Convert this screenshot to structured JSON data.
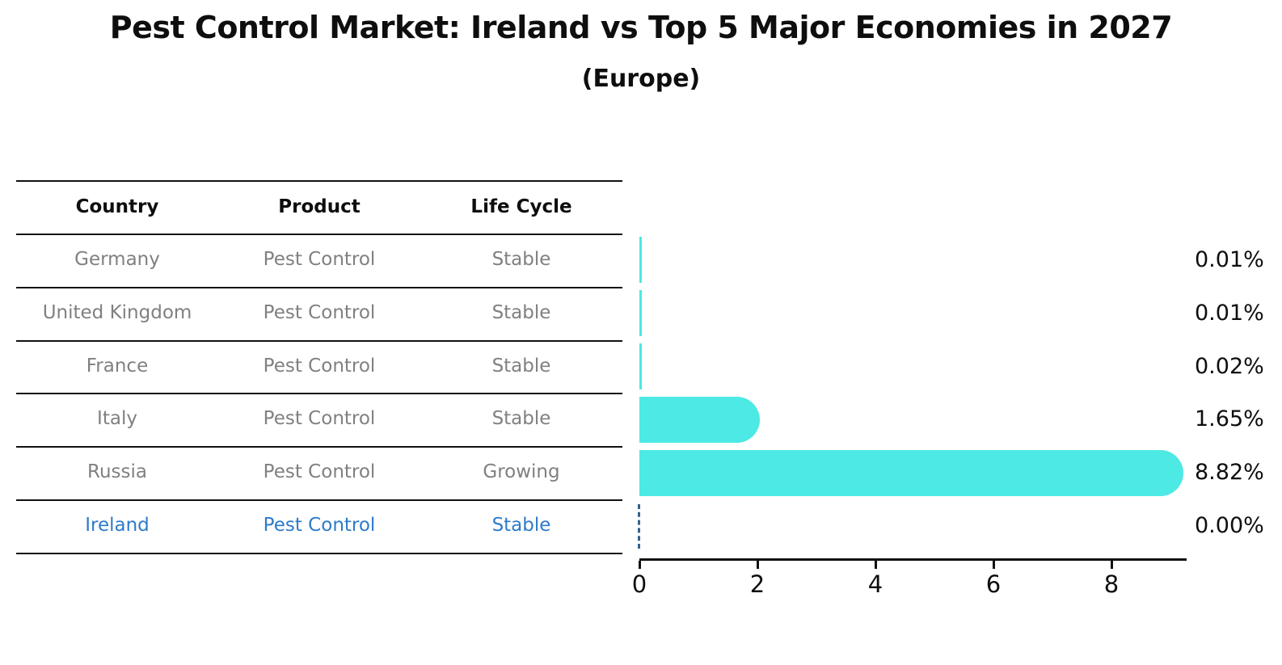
{
  "title": "Pest Control Market: Ireland vs Top 5 Major Economies in 2027",
  "subtitle": "(Europe)",
  "table": {
    "columns": [
      "Country",
      "Product",
      "Life Cycle"
    ],
    "rows": [
      {
        "country": "Germany",
        "product": "Pest Control",
        "life_cycle": "Stable",
        "highlight": false
      },
      {
        "country": "United Kingdom",
        "product": "Pest Control",
        "life_cycle": "Stable",
        "highlight": false
      },
      {
        "country": "France",
        "product": "Pest Control",
        "life_cycle": "Stable",
        "highlight": false
      },
      {
        "country": "Italy",
        "product": "Pest Control",
        "life_cycle": "Stable",
        "highlight": false
      },
      {
        "country": "Russia",
        "product": "Pest Control",
        "life_cycle": "Growing",
        "highlight": false
      },
      {
        "country": "Ireland",
        "product": "Pest Control",
        "life_cycle": "Stable",
        "highlight": true
      }
    ]
  },
  "chart_data": {
    "type": "bar",
    "orientation": "horizontal",
    "categories": [
      "Germany",
      "United Kingdom",
      "France",
      "Italy",
      "Russia",
      "Ireland"
    ],
    "values": [
      0.01,
      0.01,
      0.02,
      1.65,
      8.82,
      0.0
    ],
    "value_labels": [
      "0.01%",
      "0.01%",
      "0.02%",
      "1.65%",
      "8.82%",
      "0.00%"
    ],
    "highlight_index": 5,
    "xticks": [
      0,
      2,
      4,
      6,
      8
    ],
    "xlim": [
      0,
      9.27
    ],
    "grid": false,
    "legend": false,
    "bar_color": "#4de9e4",
    "highlight_text_color": "#2d7bca",
    "zero_marker_color": "#336390",
    "xlabel": "",
    "ylabel": ""
  }
}
